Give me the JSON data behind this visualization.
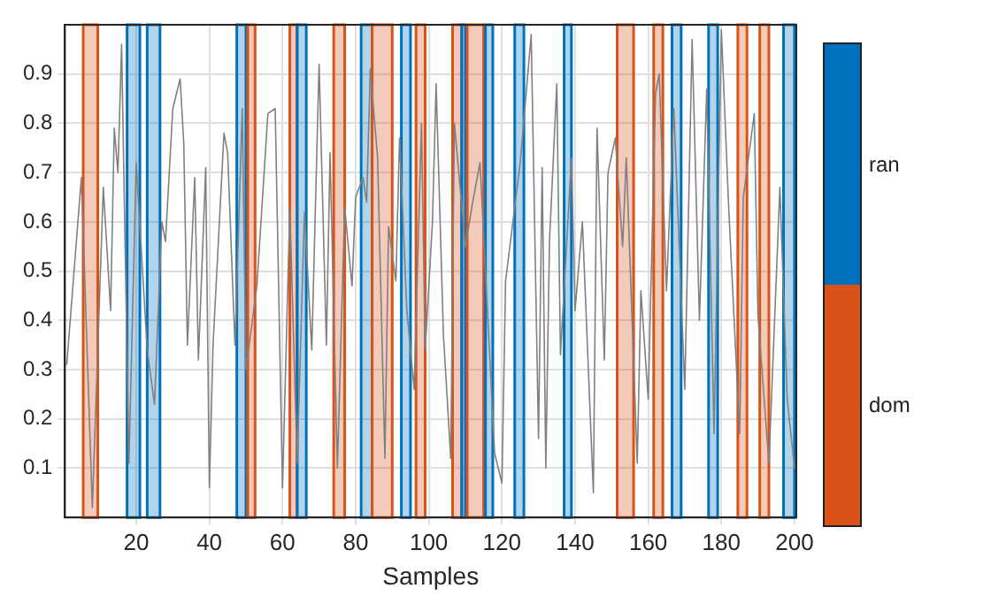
{
  "chart_data": {
    "type": "line",
    "xlabel": "Samples",
    "xlim": [
      0.5,
      200.5
    ],
    "xticks": [
      20,
      40,
      60,
      80,
      100,
      120,
      140,
      160,
      180,
      200
    ],
    "ylim": [
      0,
      1
    ],
    "yticks": [
      0.1,
      0.2,
      0.3,
      0.4,
      0.5,
      0.6,
      0.7,
      0.8,
      0.9
    ],
    "grid": true,
    "marker": "none",
    "line_style": "solid",
    "annotations": [
      "ran",
      "dom"
    ],
    "series": [
      {
        "color": "#808080",
        "x": [
          1,
          5,
          8,
          11,
          13,
          14,
          15,
          16,
          18,
          20,
          23,
          25,
          27,
          28,
          30,
          32,
          33,
          34,
          36,
          37,
          39,
          40,
          41,
          44,
          45,
          47,
          49,
          50,
          53,
          56,
          58,
          60,
          62,
          64,
          66,
          68,
          70,
          72,
          73,
          75,
          77,
          79,
          80,
          82,
          83,
          84,
          86,
          88,
          89,
          91,
          92,
          94,
          96,
          98,
          99,
          101,
          102,
          104,
          106,
          107,
          110,
          112,
          114,
          118,
          120,
          121,
          125,
          128,
          130,
          131,
          132,
          133,
          135,
          136,
          139,
          140,
          142,
          145,
          146,
          148,
          149,
          151,
          153,
          154,
          157,
          158,
          160,
          162,
          163,
          165,
          167,
          170,
          172,
          174,
          176,
          178,
          180,
          182,
          185,
          186,
          189,
          190,
          193,
          196,
          198,
          200
        ],
        "values": [
          0.31,
          0.69,
          0.02,
          0.67,
          0.42,
          0.79,
          0.7,
          0.96,
          0.11,
          0.72,
          0.34,
          0.23,
          0.6,
          0.56,
          0.83,
          0.89,
          0.76,
          0.35,
          0.69,
          0.32,
          0.71,
          0.06,
          0.35,
          0.78,
          0.74,
          0.35,
          0.83,
          0.3,
          0.47,
          0.82,
          0.83,
          0.06,
          0.63,
          0.11,
          0.62,
          0.34,
          0.92,
          0.35,
          0.74,
          0.1,
          0.63,
          0.47,
          0.65,
          0.69,
          0.64,
          0.91,
          0.73,
          0.12,
          0.59,
          0.48,
          0.77,
          0.42,
          0.26,
          0.8,
          0.34,
          0.6,
          0.88,
          0.37,
          0.12,
          0.8,
          0.55,
          0.64,
          0.72,
          0.13,
          0.07,
          0.48,
          0.72,
          0.98,
          0.16,
          0.71,
          0.1,
          0.56,
          0.88,
          0.33,
          0.73,
          0.42,
          0.6,
          0.05,
          0.79,
          0.32,
          0.7,
          0.77,
          0.55,
          0.73,
          0.11,
          0.46,
          0.24,
          0.86,
          0.9,
          0.46,
          0.83,
          0.26,
          0.97,
          0.4,
          0.87,
          0.17,
          0.99,
          0.63,
          0.17,
          0.65,
          0.82,
          0.41,
          0.11,
          0.67,
          0.24,
          0.1
        ]
      }
    ],
    "bands": [
      {
        "axis": "x",
        "from": 5.5,
        "to": 9.5,
        "color": "#d95319"
      },
      {
        "axis": "x",
        "from": 17.5,
        "to": 21,
        "color": "#0072bd"
      },
      {
        "axis": "x",
        "from": 23,
        "to": 26.5,
        "color": "#0072bd"
      },
      {
        "axis": "x",
        "from": 47.5,
        "to": 50,
        "color": "#0072bd"
      },
      {
        "axis": "x",
        "from": 50.5,
        "to": 52.5,
        "color": "#d95319"
      },
      {
        "axis": "x",
        "from": 62,
        "to": 64,
        "color": "#d95319"
      },
      {
        "axis": "x",
        "from": 64,
        "to": 66.5,
        "color": "#0072bd"
      },
      {
        "axis": "x",
        "from": 74,
        "to": 77,
        "color": "#d95319"
      },
      {
        "axis": "x",
        "from": 81.5,
        "to": 84.5,
        "color": "#0072bd"
      },
      {
        "axis": "x",
        "from": 84.5,
        "to": 90,
        "color": "#d95319"
      },
      {
        "axis": "x",
        "from": 92.5,
        "to": 95,
        "color": "#0072bd"
      },
      {
        "axis": "x",
        "from": 96.5,
        "to": 99,
        "color": "#d95319"
      },
      {
        "axis": "x",
        "from": 106.5,
        "to": 109,
        "color": "#d95319"
      },
      {
        "axis": "x",
        "from": 109,
        "to": 110,
        "color": "#0072bd"
      },
      {
        "axis": "x",
        "from": 110.5,
        "to": 115,
        "color": "#d95319"
      },
      {
        "axis": "x",
        "from": 115.5,
        "to": 117.5,
        "color": "#0072bd"
      },
      {
        "axis": "x",
        "from": 123.5,
        "to": 126,
        "color": "#0072bd"
      },
      {
        "axis": "x",
        "from": 137,
        "to": 139,
        "color": "#0072bd"
      },
      {
        "axis": "x",
        "from": 151.5,
        "to": 156,
        "color": "#d95319"
      },
      {
        "axis": "x",
        "from": 161.5,
        "to": 164,
        "color": "#d95319"
      },
      {
        "axis": "x",
        "from": 166.5,
        "to": 169,
        "color": "#0072bd"
      },
      {
        "axis": "x",
        "from": 176.5,
        "to": 179,
        "color": "#0072bd"
      },
      {
        "axis": "x",
        "from": 184.5,
        "to": 187,
        "color": "#d95319"
      },
      {
        "axis": "x",
        "from": 190.5,
        "to": 193,
        "color": "#d95319"
      },
      {
        "axis": "x",
        "from": 197,
        "to": 200,
        "color": "#0072bd"
      }
    ]
  }
}
